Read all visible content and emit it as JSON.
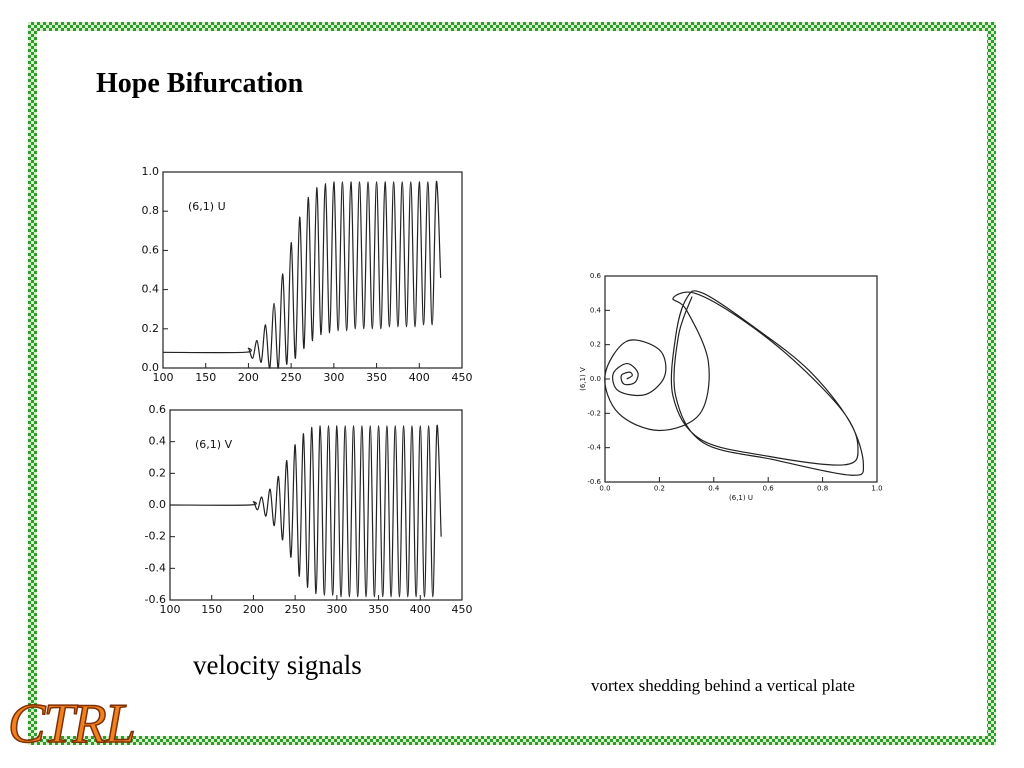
{
  "slide": {
    "title": "Hope Bifurcation",
    "logo": "CTRL"
  },
  "captions": [
    "velocity signals",
    "vortex shedding behind a vertical plate"
  ],
  "chart_data": [
    {
      "type": "line",
      "annotation": "(6,1) U",
      "color": "#222222",
      "x": [
        100,
        195,
        200,
        205,
        210,
        215,
        220,
        225,
        230,
        235,
        240,
        245,
        250,
        255,
        260,
        265,
        270,
        275,
        280,
        285,
        290,
        295,
        300,
        305,
        310,
        315,
        320,
        325,
        330,
        335,
        340,
        345,
        350,
        355,
        360,
        365,
        370,
        375,
        380,
        385,
        390,
        395,
        400,
        405,
        410,
        415,
        420,
        425
      ],
      "values": [
        0.08,
        0.08,
        0.1,
        0.05,
        0.14,
        0.03,
        0.22,
        0,
        0.33,
        0,
        0.48,
        0.02,
        0.64,
        0.05,
        0.77,
        0.1,
        0.87,
        0.14,
        0.92,
        0.17,
        0.94,
        0.18,
        0.95,
        0.19,
        0.95,
        0.19,
        0.95,
        0.2,
        0.95,
        0.2,
        0.95,
        0.2,
        0.95,
        0.2,
        0.95,
        0.21,
        0.95,
        0.21,
        0.95,
        0.21,
        0.95,
        0.21,
        0.95,
        0.22,
        0.95,
        0.22,
        0.95,
        0.46
      ],
      "xlim": [
        100,
        450
      ],
      "xticks": [
        100,
        150,
        200,
        250,
        300,
        350,
        400,
        450
      ],
      "ylim": [
        0,
        1
      ],
      "yticks": [
        {
          "value": 0,
          "label": "0.0"
        },
        0.2,
        0.4,
        0.6,
        0.8,
        {
          "value": 1,
          "label": "1.0"
        }
      ]
    },
    {
      "type": "line",
      "annotation": "(6,1) V",
      "color": "#222222",
      "x": [
        100,
        195,
        200,
        205,
        210,
        215,
        220,
        225,
        230,
        235,
        240,
        245,
        250,
        255,
        260,
        265,
        270,
        275,
        280,
        285,
        290,
        295,
        300,
        305,
        310,
        315,
        320,
        325,
        330,
        335,
        340,
        345,
        350,
        355,
        360,
        365,
        370,
        375,
        380,
        385,
        390,
        395,
        400,
        405,
        410,
        415,
        420,
        425
      ],
      "values": [
        0,
        0,
        0.02,
        -0.03,
        0.05,
        -0.07,
        0.1,
        -0.13,
        0.18,
        -0.22,
        0.28,
        -0.33,
        0.38,
        -0.45,
        0.45,
        -0.52,
        0.49,
        -0.56,
        0.5,
        -0.57,
        0.5,
        -0.57,
        0.5,
        -0.58,
        0.5,
        -0.58,
        0.5,
        -0.58,
        0.5,
        -0.58,
        0.5,
        -0.58,
        0.5,
        -0.58,
        0.5,
        -0.58,
        0.5,
        -0.58,
        0.5,
        -0.58,
        0.5,
        -0.58,
        0.5,
        -0.58,
        0.5,
        -0.58,
        0.5,
        -0.2
      ],
      "xlim": [
        100,
        450
      ],
      "xticks": [
        100,
        150,
        200,
        250,
        300,
        350,
        400,
        450
      ],
      "ylim": [
        -0.6,
        0.6
      ],
      "yticks": [
        -0.6,
        -0.4,
        -0.2,
        {
          "value": 0,
          "label": "0.0"
        },
        0.2,
        0.4,
        0.6
      ]
    },
    {
      "type": "line",
      "xlabel": "(6,1) U",
      "ylabel": "(6,1) V",
      "color": "#222222",
      "x": [
        0.08,
        0.1,
        0.09,
        0.06,
        0.07,
        0.11,
        0.12,
        0.08,
        0.03,
        0.05,
        0.15,
        0.22,
        0.2,
        0.08,
        0,
        0.05,
        0.2,
        0.35,
        0.38,
        0.3,
        0.25,
        0.33,
        0.5,
        0.7,
        0.88,
        0.93,
        0.88,
        0.6,
        0.35,
        0.25,
        0.26,
        0.3,
        0.36,
        0.55,
        0.75,
        0.9,
        0.95,
        0.9,
        0.62,
        0.36,
        0.26,
        0.27,
        0.32
      ],
      "values": [
        0,
        0.02,
        0.04,
        0.02,
        -0.03,
        -0.02,
        0.04,
        0.09,
        0.03,
        -0.07,
        -0.09,
        0.02,
        0.17,
        0.22,
        0.02,
        -0.2,
        -0.3,
        -0.2,
        0.1,
        0.4,
        0.47,
        0.5,
        0.35,
        0.1,
        -0.2,
        -0.4,
        -0.5,
        -0.45,
        -0.35,
        -0.1,
        0.25,
        0.47,
        0.5,
        0.3,
        0.05,
        -0.25,
        -0.5,
        -0.56,
        -0.47,
        -0.37,
        -0.1,
        0.25,
        0.48
      ],
      "xlim": [
        0,
        1
      ],
      "xticks": [
        {
          "value": 0,
          "label": "0.0"
        },
        0.2,
        0.4,
        0.6,
        0.8,
        {
          "value": 1,
          "label": "1.0"
        }
      ],
      "ylim": [
        -0.6,
        0.6
      ],
      "yticks": [
        -0.6,
        -0.4,
        -0.2,
        {
          "value": 0,
          "label": "0.0"
        },
        0.2,
        0.4,
        0.6
      ]
    }
  ]
}
